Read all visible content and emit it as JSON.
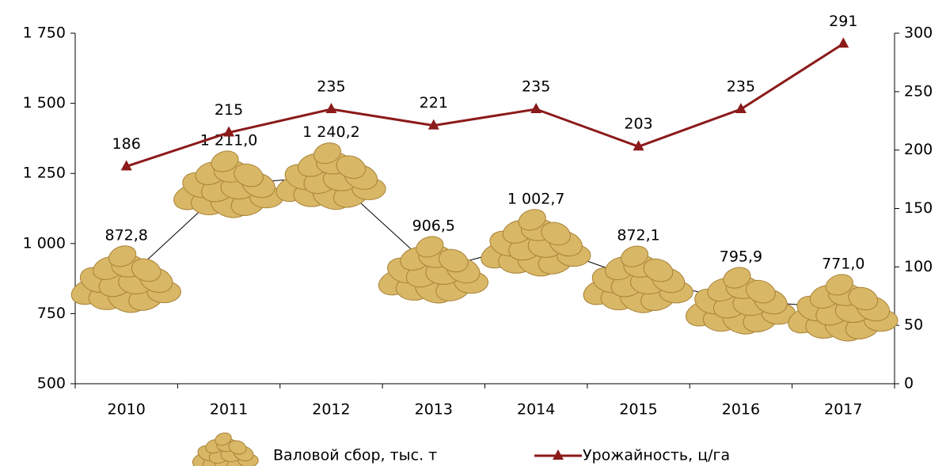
{
  "chart_data": {
    "type": "combo",
    "categories": [
      "2010",
      "2011",
      "2012",
      "2013",
      "2014",
      "2015",
      "2016",
      "2017"
    ],
    "series": [
      {
        "name": "Валовой сбор, тыс. т",
        "type": "picture",
        "color": "#d8b766",
        "values": [
          872.8,
          1211.0,
          1240.2,
          906.5,
          1002.7,
          872.1,
          795.9,
          771.0
        ],
        "value_labels": [
          "872,8",
          "1 211,0",
          "1 240,2",
          "906,5",
          "1 002,7",
          "872,1",
          "795,9",
          "771,0"
        ]
      },
      {
        "name": "Урожайность, ц/га",
        "type": "line",
        "axis": "y2",
        "color": "#8b1a1a",
        "values": [
          186,
          215,
          235,
          221,
          235,
          203,
          235,
          291
        ]
      }
    ],
    "ylim": [
      500,
      1750
    ],
    "yticks": [
      500,
      750,
      {
        "value": 1000,
        "label": "1 000"
      },
      {
        "value": 1250,
        "label": "1 250"
      },
      {
        "value": 1500,
        "label": "1 500"
      },
      {
        "value": 1750,
        "label": "1 750"
      }
    ],
    "y2lim": [
      0,
      300
    ],
    "y2ticks": [
      0,
      50,
      100,
      150,
      200,
      250,
      300
    ],
    "grid": false,
    "legend": "bottom"
  }
}
